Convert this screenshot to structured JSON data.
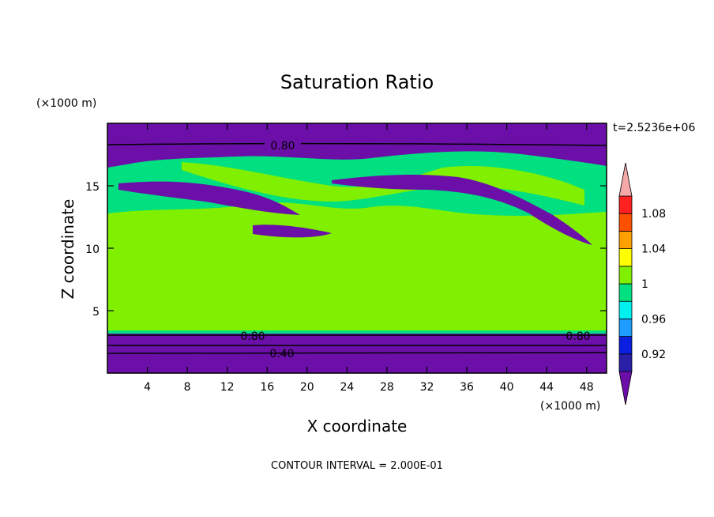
{
  "chart_data": {
    "type": "heatmap",
    "title": "Saturation Ratio",
    "xlabel": "X coordinate",
    "ylabel": "Z coordinate",
    "x_unit": "(×1000 m)",
    "y_unit": "(×1000 m)",
    "time_label": "t=2.5236e+06",
    "footer": "CONTOUR INTERVAL = 2.000E-01",
    "xlim": [
      0,
      50
    ],
    "ylim": [
      0,
      20
    ],
    "x_ticks": [
      "4",
      "8",
      "12",
      "16",
      "20",
      "24",
      "28",
      "32",
      "36",
      "40",
      "44",
      "48"
    ],
    "y_ticks": [
      "5",
      "10",
      "15"
    ],
    "contour_labels": [
      "0.80",
      "0.80",
      "0.80",
      "0.40"
    ],
    "colorbar": {
      "levels": [
        0.9,
        0.92,
        0.94,
        0.96,
        0.98,
        1.0,
        1.02,
        1.04,
        1.06,
        1.08,
        1.1
      ],
      "tick_labels": [
        "0.92",
        "0.96",
        "1",
        "1.04",
        "1.08"
      ],
      "colors": [
        "#6b0fa8",
        "#2a1fa8",
        "#0a1fe0",
        "#1e9cff",
        "#00f0f0",
        "#00e080",
        "#80f000",
        "#ffff00",
        "#ffa000",
        "#ff5000",
        "#ff2020",
        "#f4a8a8"
      ]
    }
  }
}
